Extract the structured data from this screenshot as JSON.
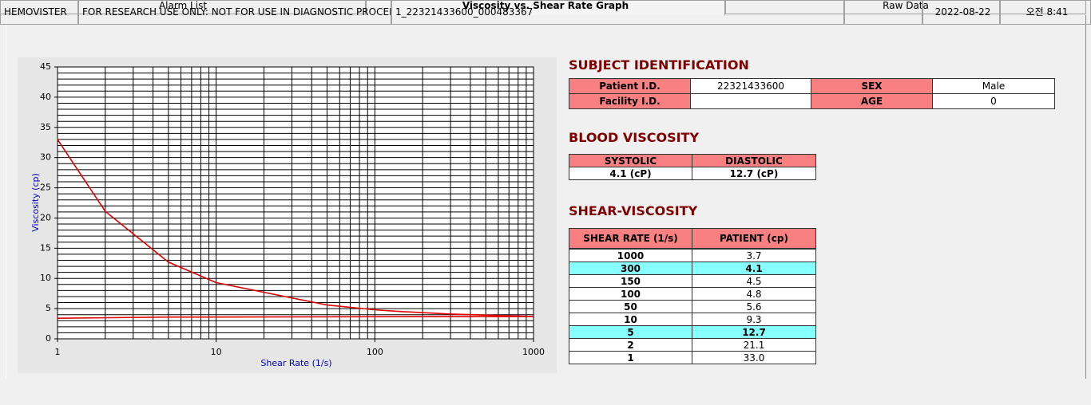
{
  "tabs": [
    "Alarm List",
    "Viscosity vs. Shear Rate Graph",
    "Raw Data"
  ],
  "active_tab": 1,
  "chart_data": {
    "type": "line",
    "xlabel": "Shear Rate (1/s)",
    "ylabel": "Viscosity (cp)",
    "xscale": "log",
    "series": [
      {
        "color": "#e00000",
        "x": [
          1,
          2,
          5,
          10,
          50,
          100,
          150,
          300,
          1000
        ],
        "values": [
          33.0,
          21.1,
          12.7,
          9.3,
          5.6,
          4.8,
          4.5,
          4.1,
          3.7
        ]
      },
      {
        "color": "#e00000",
        "x": [
          1,
          5,
          1000
        ],
        "values": [
          3.4,
          3.6,
          3.7
        ]
      }
    ],
    "xlim": [
      1,
      1000
    ],
    "xticks": [
      1,
      10,
      100,
      1000
    ],
    "xminor": [
      2,
      3,
      4,
      5,
      6,
      7,
      8,
      9,
      20,
      30,
      40,
      50,
      60,
      70,
      80,
      90,
      200,
      300,
      400,
      500,
      600,
      700,
      800,
      900
    ],
    "ylim": [
      0,
      45
    ],
    "yticks": [
      0,
      5,
      10,
      15,
      20,
      25,
      30,
      35,
      40,
      45
    ],
    "yminor": [
      1,
      2,
      3,
      4,
      6,
      7,
      8,
      9,
      11,
      12,
      13,
      14,
      16,
      17,
      18,
      19,
      21,
      22,
      23,
      24,
      26,
      27,
      28,
      29,
      31,
      32,
      33,
      34,
      36,
      37,
      38,
      39,
      41,
      42,
      43,
      44
    ],
    "grid": true
  },
  "subject": {
    "title": "SUBJECT IDENTIFICATION",
    "rows": [
      [
        "Patient I.D.",
        "22321433600",
        "SEX",
        "Male"
      ],
      [
        "Facility I.D.",
        null,
        "AGE",
        "0"
      ]
    ]
  },
  "blood": {
    "title": "BLOOD VISCOSITY",
    "headers": [
      "SYSTOLIC",
      "DIASTOLIC"
    ],
    "values": [
      "4.1 (cP)",
      "12.7 (cP)"
    ]
  },
  "shear": {
    "title": "SHEAR-VISCOSITY",
    "headers": [
      "SHEAR RATE (1/s)",
      "PATIENT (cp)"
    ],
    "rows": [
      [
        "1000",
        "3.7"
      ],
      [
        "300",
        "4.1"
      ],
      [
        "150",
        "4.5"
      ],
      [
        "100",
        "4.8"
      ],
      [
        "50",
        "5.6"
      ],
      [
        "10",
        "9.3"
      ],
      [
        "5",
        "12.7"
      ],
      [
        "2",
        "21.1"
      ],
      [
        "1",
        "33.0"
      ]
    ],
    "highlight": [
      1,
      6
    ]
  },
  "status": [
    "HEMOVISTER",
    "FOR RESEARCH USE ONLY: NOT FOR USE IN DIAGNOSTIC PROCEDURES",
    "1_22321433600_000483367",
    null,
    "2022-08-22",
    "오전 8:41"
  ]
}
